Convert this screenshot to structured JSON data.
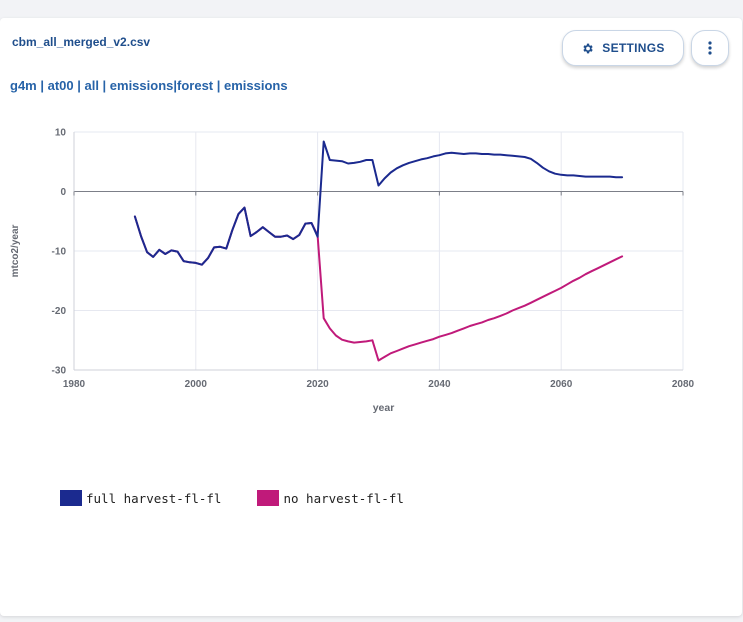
{
  "header": {
    "file_name": "cbm_all_merged_v2.csv",
    "path": "g4m | at00 | all | emissions|forest | emissions",
    "settings_label": "SETTINGS",
    "settings_icon": "gear-icon",
    "more_icon": "more-vertical-icon"
  },
  "colors": {
    "accent": "#1f4e8c",
    "full_harvest": "#1b2a8f",
    "no_harvest": "#c01a7a"
  },
  "chart_data": {
    "type": "line",
    "xlabel": "year",
    "ylabel": "mtco2/year",
    "xlim": [
      1980,
      2080
    ],
    "ylim": [
      -30,
      10
    ],
    "xticks": [
      1980,
      2000,
      2020,
      2040,
      2060,
      2080
    ],
    "yticks": [
      10,
      0,
      -10,
      -20,
      -30
    ],
    "grid": true,
    "legend_position": "bottom-left",
    "series": [
      {
        "name": "full harvest-fl-fl",
        "color": "#1b2a8f",
        "points": [
          [
            1990,
            -4.2
          ],
          [
            1991,
            -7.5
          ],
          [
            1992,
            -10.2
          ],
          [
            1993,
            -11
          ],
          [
            1994,
            -9.8
          ],
          [
            1995,
            -10.5
          ],
          [
            1996,
            -9.9
          ],
          [
            1997,
            -10.1
          ],
          [
            1998,
            -11.7
          ],
          [
            1999,
            -11.9
          ],
          [
            2000,
            -12
          ],
          [
            2001,
            -12.3
          ],
          [
            2002,
            -11.2
          ],
          [
            2003,
            -9.4
          ],
          [
            2004,
            -9.3
          ],
          [
            2005,
            -9.6
          ],
          [
            2006,
            -6.5
          ],
          [
            2007,
            -3.8
          ],
          [
            2008,
            -2.7
          ],
          [
            2009,
            -7.5
          ],
          [
            2010,
            -6.8
          ],
          [
            2011,
            -6
          ],
          [
            2012,
            -6.8
          ],
          [
            2013,
            -7.6
          ],
          [
            2014,
            -7.6
          ],
          [
            2015,
            -7.4
          ],
          [
            2016,
            -8
          ],
          [
            2017,
            -7.3
          ],
          [
            2018,
            -5.4
          ],
          [
            2019,
            -5.3
          ],
          [
            2020,
            -7.6
          ],
          [
            2021,
            8.4
          ],
          [
            2022,
            5.3
          ],
          [
            2023,
            5.2
          ],
          [
            2024,
            5.1
          ],
          [
            2025,
            4.7
          ],
          [
            2026,
            4.8
          ],
          [
            2027,
            5
          ],
          [
            2028,
            5.3
          ],
          [
            2029,
            5.3
          ],
          [
            2030,
            1
          ],
          [
            2031,
            2.2
          ],
          [
            2032,
            3.2
          ],
          [
            2033,
            3.9
          ],
          [
            2034,
            4.4
          ],
          [
            2035,
            4.8
          ],
          [
            2036,
            5.1
          ],
          [
            2037,
            5.4
          ],
          [
            2038,
            5.6
          ],
          [
            2039,
            5.9
          ],
          [
            2040,
            6.1
          ],
          [
            2041,
            6.4
          ],
          [
            2042,
            6.5
          ],
          [
            2043,
            6.4
          ],
          [
            2044,
            6.3
          ],
          [
            2045,
            6.4
          ],
          [
            2046,
            6.4
          ],
          [
            2047,
            6.3
          ],
          [
            2048,
            6.3
          ],
          [
            2049,
            6.2
          ],
          [
            2050,
            6.2
          ],
          [
            2051,
            6.1
          ],
          [
            2052,
            6
          ],
          [
            2053,
            5.9
          ],
          [
            2054,
            5.8
          ],
          [
            2055,
            5.5
          ],
          [
            2056,
            4.8
          ],
          [
            2057,
            4
          ],
          [
            2058,
            3.4
          ],
          [
            2059,
            3
          ],
          [
            2060,
            2.8
          ],
          [
            2061,
            2.7
          ],
          [
            2062,
            2.7
          ],
          [
            2063,
            2.6
          ],
          [
            2064,
            2.5
          ],
          [
            2065,
            2.5
          ],
          [
            2066,
            2.5
          ],
          [
            2067,
            2.5
          ],
          [
            2068,
            2.5
          ],
          [
            2069,
            2.4
          ],
          [
            2070,
            2.4
          ]
        ]
      },
      {
        "name": "no harvest-fl-fl",
        "color": "#c01a7a",
        "points": [
          [
            1990,
            -4.2
          ],
          [
            1991,
            -7.5
          ],
          [
            1992,
            -10.2
          ],
          [
            1993,
            -11
          ],
          [
            1994,
            -9.8
          ],
          [
            1995,
            -10.5
          ],
          [
            1996,
            -9.9
          ],
          [
            1997,
            -10.1
          ],
          [
            1998,
            -11.7
          ],
          [
            1999,
            -11.9
          ],
          [
            2000,
            -12
          ],
          [
            2001,
            -12.3
          ],
          [
            2002,
            -11.2
          ],
          [
            2003,
            -9.4
          ],
          [
            2004,
            -9.3
          ],
          [
            2005,
            -9.6
          ],
          [
            2006,
            -6.5
          ],
          [
            2007,
            -3.8
          ],
          [
            2008,
            -2.7
          ],
          [
            2009,
            -7.5
          ],
          [
            2010,
            -6.8
          ],
          [
            2011,
            -6
          ],
          [
            2012,
            -6.8
          ],
          [
            2013,
            -7.6
          ],
          [
            2014,
            -7.6
          ],
          [
            2015,
            -7.4
          ],
          [
            2016,
            -8
          ],
          [
            2017,
            -7.3
          ],
          [
            2018,
            -5.4
          ],
          [
            2019,
            -5.3
          ],
          [
            2020,
            -7.4
          ],
          [
            2021,
            -21.3
          ],
          [
            2022,
            -23
          ],
          [
            2023,
            -24.2
          ],
          [
            2024,
            -24.9
          ],
          [
            2025,
            -25.2
          ],
          [
            2026,
            -25.4
          ],
          [
            2027,
            -25.3
          ],
          [
            2028,
            -25.2
          ],
          [
            2029,
            -25
          ],
          [
            2030,
            -28.4
          ],
          [
            2031,
            -27.8
          ],
          [
            2032,
            -27.2
          ],
          [
            2033,
            -26.8
          ],
          [
            2034,
            -26.4
          ],
          [
            2035,
            -26
          ],
          [
            2036,
            -25.7
          ],
          [
            2037,
            -25.4
          ],
          [
            2038,
            -25.1
          ],
          [
            2039,
            -24.8
          ],
          [
            2040,
            -24.4
          ],
          [
            2041,
            -24.1
          ],
          [
            2042,
            -23.8
          ],
          [
            2043,
            -23.4
          ],
          [
            2044,
            -23
          ],
          [
            2045,
            -22.6
          ],
          [
            2046,
            -22.3
          ],
          [
            2047,
            -22
          ],
          [
            2048,
            -21.6
          ],
          [
            2049,
            -21.3
          ],
          [
            2050,
            -20.9
          ],
          [
            2051,
            -20.5
          ],
          [
            2052,
            -20
          ],
          [
            2053,
            -19.6
          ],
          [
            2054,
            -19.2
          ],
          [
            2055,
            -18.7
          ],
          [
            2056,
            -18.2
          ],
          [
            2057,
            -17.7
          ],
          [
            2058,
            -17.2
          ],
          [
            2059,
            -16.7
          ],
          [
            2060,
            -16.2
          ],
          [
            2061,
            -15.6
          ],
          [
            2062,
            -15
          ],
          [
            2063,
            -14.5
          ],
          [
            2064,
            -13.9
          ],
          [
            2065,
            -13.4
          ],
          [
            2066,
            -12.9
          ],
          [
            2067,
            -12.4
          ],
          [
            2068,
            -11.9
          ],
          [
            2069,
            -11.4
          ],
          [
            2070,
            -10.9
          ]
        ]
      }
    ]
  }
}
